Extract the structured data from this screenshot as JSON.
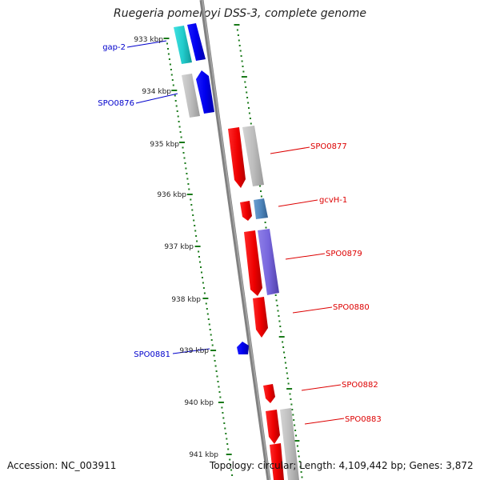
{
  "title": "Ruegeria pomeroyi DSS-3, complete genome",
  "footer": {
    "accession": "Accession: NC_003911",
    "summary": "Topology: circular; Length: 4,109,442 bp; Genes: 3,872"
  },
  "colors": {
    "forward_label": "#0000cc",
    "reverse_label": "#dd0000",
    "ticks": "#1a7a1a",
    "backbone": "#808080"
  },
  "kbp_labels": [
    "933 kbp",
    "934 kbp",
    "935 kbp",
    "936 kbp",
    "937 kbp",
    "938 kbp",
    "939 kbp",
    "940 kbp",
    "941 kbp"
  ],
  "gene_labels": [
    {
      "text": "gap-2",
      "strand": "forward"
    },
    {
      "text": "SPO0876",
      "strand": "forward"
    },
    {
      "text": "SPO0877",
      "strand": "reverse"
    },
    {
      "text": "gcvH-1",
      "strand": "reverse"
    },
    {
      "text": "SPO0879",
      "strand": "reverse"
    },
    {
      "text": "SPO0880",
      "strand": "reverse"
    },
    {
      "text": "SPO0881",
      "strand": "forward"
    },
    {
      "text": "SPO0882",
      "strand": "reverse"
    },
    {
      "text": "SPO0883",
      "strand": "reverse"
    }
  ]
}
